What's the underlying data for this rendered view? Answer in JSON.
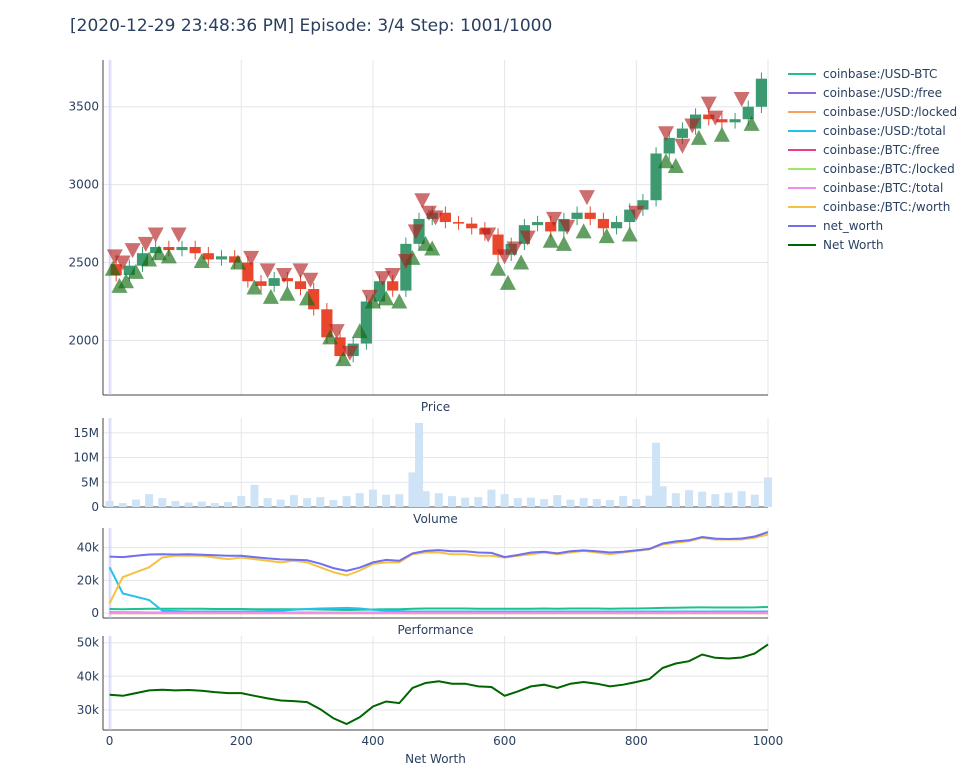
{
  "title": "[2020-12-29 23:48:36 PM] Episode: 3/4 Step: 1001/1000",
  "colors": {
    "price_up": "#3d9970",
    "price_down": "#e8472e",
    "buy_marker": "#0f6b0f",
    "sell_marker": "#b22222",
    "volume": "#cfe3f7",
    "net_worth": "#006400"
  },
  "chart_data": [
    {
      "type": "line",
      "subplot_label": "Price",
      "chart": "candlestick with buy/sell markers",
      "x": [
        0,
        20,
        40,
        60,
        80,
        100,
        120,
        140,
        160,
        180,
        200,
        220,
        240,
        260,
        280,
        300,
        320,
        340,
        360,
        380,
        400,
        420,
        440,
        460,
        480,
        500,
        520,
        540,
        560,
        580,
        600,
        620,
        640,
        660,
        680,
        700,
        720,
        740,
        760,
        780,
        800,
        820,
        840,
        860,
        880,
        900,
        920,
        940,
        960,
        980,
        1000
      ],
      "close": [
        2490,
        2420,
        2480,
        2560,
        2600,
        2580,
        2600,
        2560,
        2520,
        2540,
        2500,
        2380,
        2350,
        2400,
        2380,
        2330,
        2200,
        2020,
        1900,
        1980,
        2250,
        2380,
        2320,
        2620,
        2780,
        2820,
        2760,
        2750,
        2720,
        2680,
        2550,
        2620,
        2740,
        2760,
        2700,
        2780,
        2820,
        2780,
        2720,
        2760,
        2840,
        2900,
        3200,
        3300,
        3360,
        3450,
        3420,
        3400,
        3420,
        3500,
        3680
      ],
      "ytick_labels": [
        "2000",
        "2500",
        "3000",
        "3500"
      ],
      "yticks": [
        2000,
        2500,
        3000,
        3500
      ],
      "ylim": [
        1650,
        3800
      ],
      "buys": [
        {
          "x": 5,
          "y": 2460
        },
        {
          "x": 15,
          "y": 2350
        },
        {
          "x": 25,
          "y": 2380
        },
        {
          "x": 40,
          "y": 2440
        },
        {
          "x": 60,
          "y": 2520
        },
        {
          "x": 75,
          "y": 2560
        },
        {
          "x": 90,
          "y": 2540
        },
        {
          "x": 140,
          "y": 2510
        },
        {
          "x": 195,
          "y": 2500
        },
        {
          "x": 220,
          "y": 2340
        },
        {
          "x": 245,
          "y": 2280
        },
        {
          "x": 270,
          "y": 2300
        },
        {
          "x": 300,
          "y": 2270
        },
        {
          "x": 335,
          "y": 2020
        },
        {
          "x": 355,
          "y": 1880
        },
        {
          "x": 380,
          "y": 2060
        },
        {
          "x": 400,
          "y": 2250
        },
        {
          "x": 420,
          "y": 2270
        },
        {
          "x": 440,
          "y": 2250
        },
        {
          "x": 460,
          "y": 2530
        },
        {
          "x": 480,
          "y": 2620
        },
        {
          "x": 490,
          "y": 2590
        },
        {
          "x": 590,
          "y": 2460
        },
        {
          "x": 605,
          "y": 2370
        },
        {
          "x": 625,
          "y": 2500
        },
        {
          "x": 670,
          "y": 2640
        },
        {
          "x": 690,
          "y": 2620
        },
        {
          "x": 720,
          "y": 2700
        },
        {
          "x": 755,
          "y": 2670
        },
        {
          "x": 790,
          "y": 2680
        },
        {
          "x": 845,
          "y": 3150
        },
        {
          "x": 860,
          "y": 3120
        },
        {
          "x": 895,
          "y": 3300
        },
        {
          "x": 930,
          "y": 3320
        },
        {
          "x": 975,
          "y": 3390
        }
      ],
      "sells": [
        {
          "x": 8,
          "y": 2540
        },
        {
          "x": 20,
          "y": 2500
        },
        {
          "x": 35,
          "y": 2580
        },
        {
          "x": 55,
          "y": 2620
        },
        {
          "x": 70,
          "y": 2680
        },
        {
          "x": 105,
          "y": 2680
        },
        {
          "x": 215,
          "y": 2530
        },
        {
          "x": 240,
          "y": 2450
        },
        {
          "x": 265,
          "y": 2420
        },
        {
          "x": 290,
          "y": 2450
        },
        {
          "x": 305,
          "y": 2390
        },
        {
          "x": 345,
          "y": 2060
        },
        {
          "x": 365,
          "y": 1920
        },
        {
          "x": 395,
          "y": 2280
        },
        {
          "x": 415,
          "y": 2400
        },
        {
          "x": 430,
          "y": 2420
        },
        {
          "x": 450,
          "y": 2510
        },
        {
          "x": 465,
          "y": 2700
        },
        {
          "x": 475,
          "y": 2900
        },
        {
          "x": 485,
          "y": 2820
        },
        {
          "x": 495,
          "y": 2790
        },
        {
          "x": 575,
          "y": 2680
        },
        {
          "x": 600,
          "y": 2540
        },
        {
          "x": 615,
          "y": 2590
        },
        {
          "x": 635,
          "y": 2660
        },
        {
          "x": 675,
          "y": 2780
        },
        {
          "x": 695,
          "y": 2730
        },
        {
          "x": 725,
          "y": 2920
        },
        {
          "x": 800,
          "y": 2820
        },
        {
          "x": 845,
          "y": 3330
        },
        {
          "x": 870,
          "y": 3250
        },
        {
          "x": 885,
          "y": 3380
        },
        {
          "x": 910,
          "y": 3520
        },
        {
          "x": 920,
          "y": 3430
        },
        {
          "x": 960,
          "y": 3550
        }
      ]
    },
    {
      "type": "bar",
      "subplot_label": "Volume",
      "x": [
        0,
        20,
        40,
        60,
        80,
        100,
        120,
        140,
        160,
        180,
        200,
        220,
        240,
        260,
        280,
        300,
        320,
        340,
        360,
        380,
        400,
        420,
        440,
        460,
        470,
        480,
        500,
        520,
        540,
        560,
        580,
        600,
        620,
        640,
        660,
        680,
        700,
        720,
        740,
        760,
        780,
        800,
        820,
        830,
        840,
        860,
        880,
        900,
        920,
        940,
        960,
        980,
        1000
      ],
      "values": [
        1.2,
        0.8,
        1.5,
        2.6,
        1.8,
        1.2,
        0.9,
        1.1,
        0.8,
        1.0,
        2.2,
        4.5,
        1.8,
        1.5,
        2.4,
        1.8,
        2.0,
        1.4,
        2.2,
        2.8,
        3.5,
        2.5,
        2.6,
        7.0,
        17.0,
        3.2,
        2.8,
        2.2,
        1.9,
        2.0,
        3.5,
        2.6,
        1.8,
        1.9,
        1.6,
        2.4,
        1.5,
        1.8,
        1.6,
        1.4,
        2.2,
        1.6,
        2.3,
        13.0,
        4.2,
        2.8,
        3.4,
        3.1,
        2.6,
        2.9,
        3.2,
        2.5,
        6.0
      ],
      "unit": "M",
      "ytick_labels": [
        "0",
        "5M",
        "10M",
        "15M"
      ],
      "yticks": [
        0,
        5,
        10,
        15
      ],
      "ylim": [
        0,
        18
      ]
    },
    {
      "type": "line",
      "subplot_label": "Performance",
      "legend_position": "right",
      "x": [
        0,
        20,
        40,
        60,
        80,
        100,
        120,
        140,
        160,
        180,
        200,
        220,
        240,
        260,
        280,
        300,
        320,
        340,
        360,
        380,
        400,
        420,
        440,
        460,
        480,
        500,
        520,
        540,
        560,
        580,
        600,
        620,
        640,
        660,
        680,
        700,
        720,
        740,
        760,
        780,
        800,
        820,
        840,
        860,
        880,
        900,
        920,
        940,
        960,
        980,
        1000
      ],
      "ytick_labels": [
        "0",
        "20k",
        "40k"
      ],
      "yticks": [
        0,
        20,
        40
      ],
      "ylim": [
        -3,
        52
      ],
      "series": [
        {
          "name": "coinbase:/USD-BTC",
          "color": "#1fbf8f",
          "values": [
            2.5,
            2.4,
            2.5,
            2.6,
            2.6,
            2.6,
            2.6,
            2.6,
            2.5,
            2.5,
            2.5,
            2.4,
            2.3,
            2.4,
            2.4,
            2.3,
            2.2,
            2.0,
            1.9,
            2.0,
            2.2,
            2.4,
            2.3,
            2.6,
            2.8,
            2.8,
            2.8,
            2.8,
            2.7,
            2.7,
            2.6,
            2.6,
            2.7,
            2.8,
            2.7,
            2.8,
            2.8,
            2.8,
            2.7,
            2.8,
            2.8,
            2.9,
            3.2,
            3.3,
            3.4,
            3.5,
            3.4,
            3.4,
            3.4,
            3.5,
            3.7
          ]
        },
        {
          "name": "coinbase:/USD:/free",
          "color": "#8c6bdb",
          "values": [
            0.5,
            0.4,
            0.4,
            0.3,
            0.3,
            0.3,
            0.3,
            0.3,
            0.3,
            0.3,
            0.3,
            0.3,
            0.3,
            0.3,
            0.3,
            0.3,
            0.3,
            0.3,
            0.3,
            0.3,
            0.3,
            0.3,
            0.3,
            0.3,
            0.3,
            0.3,
            0.3,
            0.3,
            0.3,
            0.3,
            0.3,
            0.3,
            0.3,
            0.3,
            0.3,
            0.3,
            0.3,
            0.3,
            0.3,
            0.3,
            0.3,
            0.3,
            0.3,
            0.3,
            0.3,
            0.3,
            0.3,
            0.3,
            0.3,
            0.3,
            0.3
          ]
        },
        {
          "name": "coinbase:/USD:/locked",
          "color": "#f4a261",
          "values": [
            0,
            0,
            0,
            0,
            0,
            0,
            0,
            0,
            0,
            0,
            0,
            0,
            0,
            0,
            0,
            0,
            0,
            0,
            0,
            0,
            0,
            0,
            0,
            0,
            0,
            0,
            0,
            0,
            0,
            0,
            0,
            0,
            0,
            0,
            0,
            0,
            0,
            0,
            0,
            0,
            0,
            0,
            0,
            0,
            0,
            0,
            0,
            0,
            0,
            0,
            0
          ]
        },
        {
          "name": "coinbase:/USD:/total",
          "color": "#22c3e6",
          "values": [
            28,
            12,
            10,
            8,
            1.5,
            1.2,
            1.0,
            1.0,
            1.0,
            1.0,
            1.0,
            1.0,
            1.2,
            1.5,
            2.0,
            2.5,
            2.8,
            3.0,
            3.2,
            2.8,
            2.0,
            1.5,
            1.2,
            1.0,
            1.0,
            1.0,
            1.0,
            1.0,
            1.0,
            1.0,
            1.0,
            1.0,
            1.0,
            1.0,
            1.0,
            1.0,
            1.0,
            1.0,
            1.0,
            1.0,
            1.0,
            1.0,
            1.0,
            1.0,
            1.0,
            1.0,
            1.0,
            1.0,
            1.0,
            1.0,
            1.0
          ]
        },
        {
          "name": "coinbase:/BTC:/free",
          "color": "#e83e8c",
          "values": [
            0,
            0,
            0,
            0,
            0,
            0,
            0,
            0,
            0,
            0,
            0,
            0,
            0,
            0,
            0,
            0,
            0,
            0,
            0,
            0,
            0,
            0,
            0,
            0,
            0,
            0,
            0,
            0,
            0,
            0,
            0,
            0,
            0,
            0,
            0,
            0,
            0,
            0,
            0,
            0,
            0,
            0,
            0,
            0,
            0,
            0,
            0,
            0,
            0,
            0,
            0
          ]
        },
        {
          "name": "coinbase:/BTC:/locked",
          "color": "#a3e66b",
          "values": [
            0,
            0,
            0,
            0,
            0,
            0,
            0,
            0,
            0,
            0,
            0,
            0,
            0,
            0,
            0,
            0,
            0,
            0,
            0,
            0,
            0,
            0,
            0,
            0,
            0,
            0,
            0,
            0,
            0,
            0,
            0,
            0,
            0,
            0,
            0,
            0,
            0,
            0,
            0,
            0,
            0,
            0,
            0,
            0,
            0,
            0,
            0,
            0,
            0,
            0,
            0
          ]
        },
        {
          "name": "coinbase:/BTC:/total",
          "color": "#f08cf0",
          "values": [
            0.2,
            0.2,
            0.2,
            0.2,
            0.2,
            0.2,
            0.2,
            0.2,
            0.2,
            0.2,
            0.2,
            0.2,
            0.2,
            0.2,
            0.2,
            0.2,
            0.2,
            0.2,
            0.2,
            0.2,
            0.2,
            0.2,
            0.2,
            0.2,
            0.2,
            0.2,
            0.2,
            0.2,
            0.2,
            0.2,
            0.2,
            0.2,
            0.2,
            0.2,
            0.2,
            0.2,
            0.2,
            0.2,
            0.2,
            0.2,
            0.2,
            0.2,
            0.2,
            0.2,
            0.2,
            0.2,
            0.2,
            0.2,
            0.2,
            0.2,
            0.2
          ]
        },
        {
          "name": "coinbase:/BTC:/worth",
          "color": "#f5c244",
          "values": [
            6,
            22,
            25,
            28,
            34,
            35,
            35,
            35,
            34,
            33,
            34,
            33,
            32,
            31,
            32,
            31,
            28,
            25,
            23,
            26,
            30,
            31,
            31,
            36,
            37,
            37,
            36,
            36,
            35,
            35,
            34,
            35,
            36,
            37,
            36,
            37,
            38,
            37,
            36,
            37,
            38,
            39,
            42,
            43,
            44,
            46,
            45,
            45,
            45,
            46,
            48
          ]
        },
        {
          "name": "net_worth",
          "color": "#6f6ff0",
          "values": [
            34.5,
            34.2,
            35.0,
            35.8,
            36.0,
            35.8,
            35.9,
            35.7,
            35.3,
            35.0,
            35.0,
            34.2,
            33.4,
            32.8,
            32.6,
            32.3,
            30.2,
            27.5,
            25.8,
            27.8,
            31.0,
            32.5,
            32.0,
            36.5,
            38.0,
            38.5,
            37.8,
            37.8,
            37.0,
            36.8,
            34.2,
            35.5,
            37.0,
            37.5,
            36.5,
            37.8,
            38.3,
            37.8,
            37.0,
            37.5,
            38.3,
            39.2,
            42.5,
            43.8,
            44.5,
            46.5,
            45.5,
            45.3,
            45.6,
            46.8,
            49.5
          ]
        }
      ]
    },
    {
      "type": "line",
      "subplot_label": "Net Worth",
      "x": [
        0,
        20,
        40,
        60,
        80,
        100,
        120,
        140,
        160,
        180,
        200,
        220,
        240,
        260,
        280,
        300,
        320,
        340,
        360,
        380,
        400,
        420,
        440,
        460,
        480,
        500,
        520,
        540,
        560,
        580,
        600,
        620,
        640,
        660,
        680,
        700,
        720,
        740,
        760,
        780,
        800,
        820,
        840,
        860,
        880,
        900,
        920,
        940,
        960,
        980,
        1000
      ],
      "ytick_labels": [
        "30k",
        "40k",
        "50k"
      ],
      "yticks": [
        30,
        40,
        50
      ],
      "ylim": [
        24,
        52
      ],
      "xtick_labels": [
        "0",
        "200",
        "400",
        "600",
        "800",
        "1000"
      ],
      "xticks": [
        0,
        200,
        400,
        600,
        800,
        1000
      ],
      "xlim": [
        -10,
        1000
      ],
      "series": [
        {
          "name": "Net Worth",
          "color": "#006400",
          "values": [
            34.5,
            34.2,
            35.0,
            35.8,
            36.0,
            35.8,
            35.9,
            35.7,
            35.3,
            35.0,
            35.0,
            34.2,
            33.4,
            32.8,
            32.6,
            32.3,
            30.2,
            27.5,
            25.8,
            27.8,
            31.0,
            32.5,
            32.0,
            36.5,
            38.0,
            38.5,
            37.8,
            37.8,
            37.0,
            36.8,
            34.2,
            35.5,
            37.0,
            37.5,
            36.5,
            37.8,
            38.3,
            37.8,
            37.0,
            37.5,
            38.3,
            39.2,
            42.5,
            43.8,
            44.5,
            46.5,
            45.5,
            45.3,
            45.6,
            46.8,
            49.5
          ]
        }
      ]
    }
  ]
}
